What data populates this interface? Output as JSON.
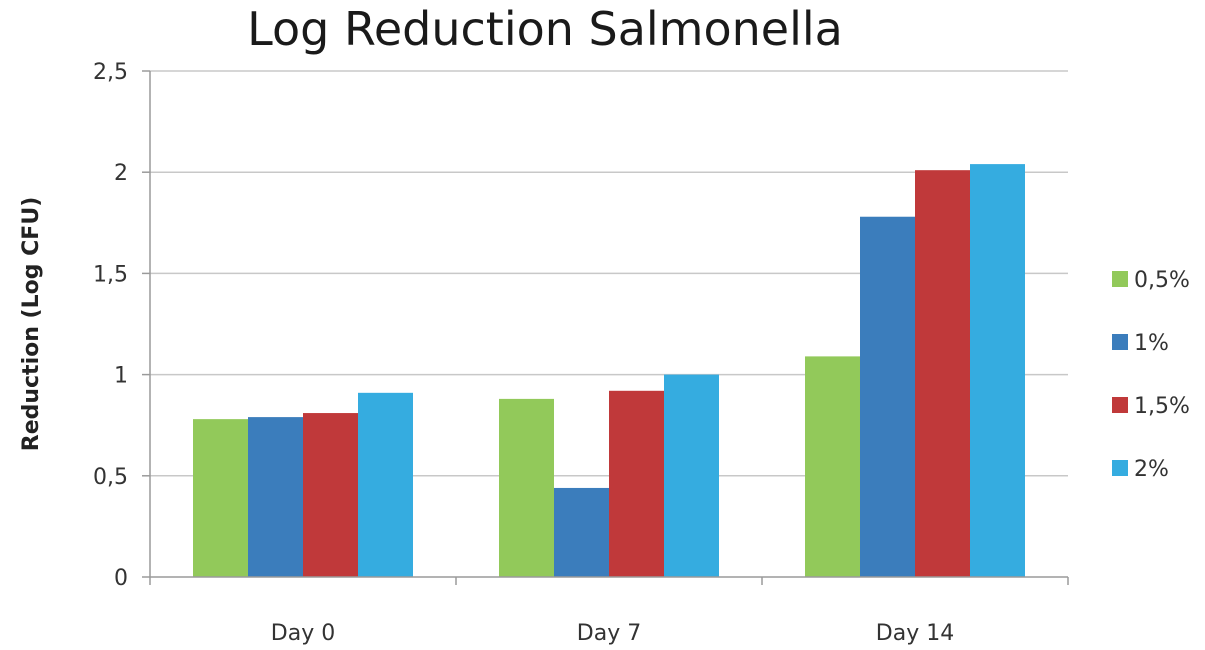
{
  "chart_data": {
    "type": "bar",
    "title": "Log Reduction Salmonella",
    "xlabel": "",
    "ylabel": "Reduction (Log CFU)",
    "categories": [
      "Day 0",
      "Day 7",
      "Day 14"
    ],
    "series": [
      {
        "name": "0,5%",
        "color": "#92c95a",
        "values": [
          0.78,
          0.88,
          1.09
        ]
      },
      {
        "name": "1%",
        "color": "#3b7dbc",
        "values": [
          0.79,
          0.44,
          1.78
        ]
      },
      {
        "name": "1,5%",
        "color": "#c0393a",
        "values": [
          0.81,
          0.92,
          2.01
        ]
      },
      {
        "name": "2%",
        "color": "#35ace0",
        "values": [
          0.91,
          1.0,
          2.04
        ]
      }
    ],
    "ylim": [
      0,
      2.5
    ],
    "yticks": [
      0,
      0.5,
      1,
      1.5,
      2,
      2.5
    ],
    "ytick_labels": [
      "0",
      "0,5",
      "1",
      "1,5",
      "2",
      "2,5"
    ],
    "grid": true,
    "legend_position": "right"
  }
}
